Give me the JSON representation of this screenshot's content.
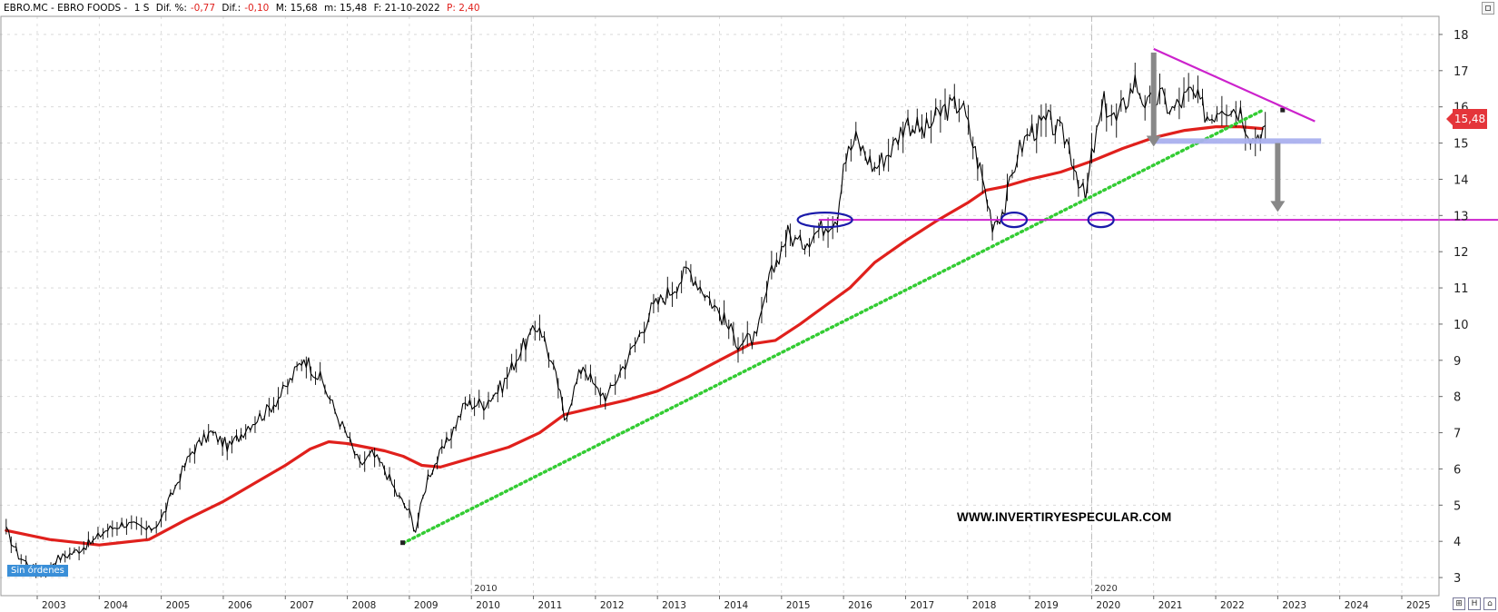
{
  "header": {
    "symbol": "EBRO.MC - EBRO FOODS -",
    "timeframe": "1 S",
    "dif_pct_label": "Dif. %:",
    "dif_pct_value": "-0,77",
    "dif_label": "Dif.:",
    "dif_value": "-0,10",
    "max_label": "M: 15,68",
    "min_label": "m: 15,48",
    "date_label": "F: 21-10-2022",
    "p_label": "P: 2,40"
  },
  "price_tag": "15,48",
  "status_badge": "Sin órdenes",
  "watermark": "WWW.INVERTIRYESPECULAR.COM",
  "bottom_icons": [
    "⊞",
    "H",
    "⌂"
  ],
  "colors": {
    "price": "#000000",
    "moving_average": "#e0201c",
    "trendline": "#33cc33",
    "support_line": "#cc22cc",
    "zone": "#aab0ee",
    "circle": "#1a1aaa",
    "arrow": "#888888",
    "grid": "#d4d4d4"
  },
  "chart_data": {
    "type": "line",
    "title": "",
    "xlabel": "",
    "ylabel": "",
    "xlim": [
      2002.4,
      2025.6
    ],
    "ylim": [
      2.5,
      18.5
    ],
    "y_axis_side": "right",
    "y_ticks": [
      "3",
      "4",
      "5",
      "6",
      "7",
      "8",
      "9",
      "10",
      "11",
      "12",
      "13",
      "14",
      "15",
      "16",
      "17",
      "18"
    ],
    "x_ticks": [
      "2003",
      "2004",
      "2005",
      "2006",
      "2007",
      "2008",
      "2009",
      "2010",
      "2011",
      "2012",
      "2013",
      "2014",
      "2015",
      "2016",
      "2017",
      "2018",
      "2019",
      "2020",
      "2021",
      "2022",
      "2023",
      "2024",
      "2025"
    ],
    "x_markers": [
      "2010",
      "2020"
    ],
    "grid": true,
    "series": [
      {
        "kind": "price",
        "x": [
          2002.5,
          2002.7,
          2002.9,
          2003.1,
          2003.3,
          2003.6,
          2003.9,
          2004.1,
          2004.4,
          2004.8,
          2005.0,
          2005.3,
          2005.5,
          2005.8,
          2006.1,
          2006.4,
          2006.7,
          2007.0,
          2007.3,
          2007.6,
          2007.8,
          2008.0,
          2008.2,
          2008.4,
          2008.6,
          2008.8,
          2009.0,
          2009.1,
          2009.3,
          2009.6,
          2009.9,
          2010.2,
          2010.5,
          2010.8,
          2011.1,
          2011.4,
          2011.5,
          2011.7,
          2011.8,
          2012.0,
          2012.2,
          2012.4,
          2012.6,
          2012.9,
          2013.2,
          2013.5,
          2013.8,
          2014.0,
          2014.3,
          2014.6,
          2014.8,
          2015.0,
          2015.1,
          2015.3,
          2015.6,
          2015.9,
          2016.0,
          2016.2,
          2016.5,
          2016.8,
          2017.0,
          2017.3,
          2017.6,
          2017.9,
          2018.2,
          2018.4,
          2018.6,
          2018.8,
          2019.0,
          2019.3,
          2019.6,
          2019.9,
          2020.0,
          2020.2,
          2020.4,
          2020.7,
          2020.9,
          2021.1,
          2021.3,
          2021.6,
          2021.9,
          2022.1,
          2022.4,
          2022.6,
          2022.8
        ],
        "y": [
          4.3,
          3.6,
          3.3,
          3.1,
          3.5,
          3.7,
          4.0,
          4.3,
          4.5,
          4.3,
          4.6,
          5.8,
          6.5,
          7.0,
          6.6,
          7.2,
          7.6,
          8.2,
          9.1,
          8.4,
          7.6,
          6.9,
          6.1,
          6.4,
          6.0,
          5.3,
          4.8,
          4.3,
          5.8,
          6.7,
          7.8,
          7.8,
          8.3,
          9.3,
          10.0,
          8.3,
          7.4,
          8.4,
          8.9,
          8.2,
          8.0,
          8.7,
          9.3,
          10.4,
          10.9,
          11.5,
          10.8,
          10.3,
          9.5,
          9.6,
          11.2,
          12.1,
          12.5,
          12.2,
          12.6,
          13.0,
          14.5,
          15.1,
          14.3,
          14.9,
          15.6,
          15.3,
          15.9,
          16.1,
          14.3,
          12.8,
          13.2,
          14.7,
          15.3,
          15.6,
          15.1,
          13.4,
          14.6,
          16.1,
          15.6,
          16.7,
          16.0,
          16.3,
          15.9,
          16.4,
          15.7,
          16.1,
          15.9,
          15.1,
          15.48
        ]
      },
      {
        "kind": "moving-average",
        "x": [
          2002.5,
          2003.2,
          2004.0,
          2004.8,
          2005.4,
          2006.0,
          2006.5,
          2007.0,
          2007.4,
          2007.7,
          2008.0,
          2008.3,
          2008.6,
          2008.9,
          2009.2,
          2009.5,
          2010.0,
          2010.6,
          2011.1,
          2011.5,
          2012.0,
          2012.5,
          2013.0,
          2013.5,
          2014.0,
          2014.5,
          2014.9,
          2015.3,
          2015.7,
          2016.1,
          2016.5,
          2017.0,
          2017.5,
          2018.0,
          2018.3,
          2018.6,
          2019.0,
          2019.5,
          2020.0,
          2020.5,
          2021.0,
          2021.5,
          2022.0,
          2022.4,
          2022.75
        ],
        "y": [
          4.3,
          4.05,
          3.9,
          4.05,
          4.6,
          5.1,
          5.6,
          6.1,
          6.55,
          6.75,
          6.7,
          6.6,
          6.5,
          6.35,
          6.1,
          6.05,
          6.3,
          6.6,
          7.0,
          7.5,
          7.7,
          7.9,
          8.15,
          8.55,
          9.0,
          9.45,
          9.55,
          10.0,
          10.5,
          11.0,
          11.7,
          12.3,
          12.85,
          13.35,
          13.7,
          13.8,
          14.0,
          14.2,
          14.5,
          14.85,
          15.15,
          15.35,
          15.45,
          15.45,
          15.4
        ]
      }
    ],
    "annotations": [
      {
        "kind": "trendline",
        "style": "dotted",
        "x": [
          2008.9,
          2022.75
        ],
        "y": [
          3.95,
          15.9
        ]
      },
      {
        "kind": "support-line",
        "x": [
          2015.6,
          2027.3
        ],
        "y": [
          12.88,
          12.88
        ]
      },
      {
        "kind": "resistance-line",
        "x": [
          2021.0,
          2023.6
        ],
        "y": [
          17.6,
          15.6
        ]
      },
      {
        "kind": "zone",
        "x": [
          2021.0,
          2023.7
        ],
        "y": [
          14.98,
          15.13
        ]
      },
      {
        "kind": "circle",
        "x": 2015.7,
        "y": 12.88
      },
      {
        "kind": "circle",
        "x": 2018.75,
        "y": 12.88
      },
      {
        "kind": "circle",
        "x": 2020.15,
        "y": 12.88
      },
      {
        "kind": "arrow-down",
        "x": 2021.0,
        "y": [
          17.5,
          14.9
        ]
      },
      {
        "kind": "arrow-down",
        "x": 2023.0,
        "y": [
          15.0,
          13.1
        ]
      }
    ]
  }
}
